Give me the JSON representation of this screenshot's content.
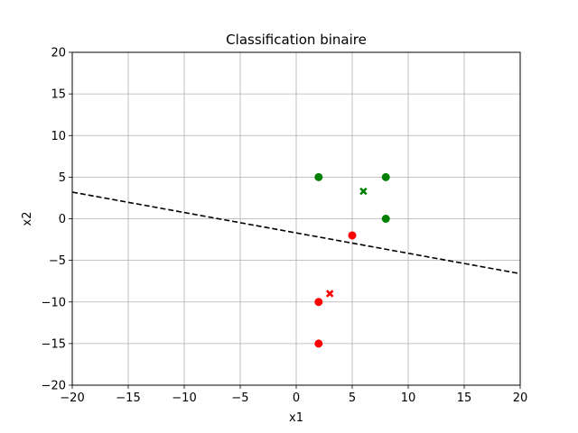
{
  "chart_data": {
    "type": "scatter",
    "title": "Classification binaire",
    "xlabel": "x1",
    "ylabel": "x2",
    "xlim": [
      -20,
      20
    ],
    "ylim": [
      -20,
      20
    ],
    "xticks": [
      -20,
      -15,
      -10,
      -5,
      0,
      5,
      10,
      15,
      20
    ],
    "yticks": [
      -20,
      -15,
      -10,
      -5,
      0,
      5,
      10,
      15,
      20
    ],
    "xtick_labels": [
      "−20",
      "−15",
      "−10",
      "−5",
      "0",
      "5",
      "10",
      "15",
      "20"
    ],
    "ytick_labels": [
      "−20",
      "−15",
      "−10",
      "−5",
      "0",
      "5",
      "10",
      "15",
      "20"
    ],
    "grid": true,
    "series": [
      {
        "marker": "circle",
        "color": "#008000",
        "points": [
          [
            2,
            5
          ],
          [
            8,
            5
          ],
          [
            8,
            0
          ]
        ]
      },
      {
        "marker": "circle",
        "color": "#ff0000",
        "points": [
          [
            5,
            -2
          ],
          [
            2,
            -10
          ],
          [
            2,
            -15
          ]
        ]
      },
      {
        "marker": "x",
        "color": "#008000",
        "points": [
          [
            6,
            3.3
          ]
        ]
      },
      {
        "marker": "x",
        "color": "#ff0000",
        "points": [
          [
            3,
            -9
          ]
        ]
      }
    ],
    "decision_line": {
      "style": "dashed",
      "color": "#000000",
      "points": [
        [
          -20,
          3.2
        ],
        [
          20,
          -6.6
        ]
      ]
    }
  }
}
